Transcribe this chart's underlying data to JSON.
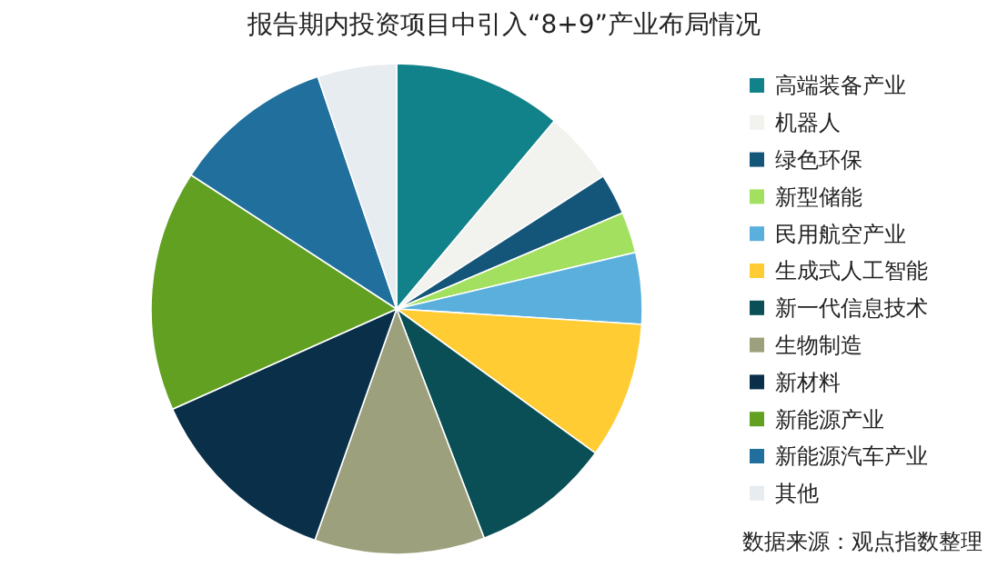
{
  "chart_data": {
    "type": "pie",
    "title": "报告期内投资项目中引入“8+9”产业布局情况",
    "categories": [
      "高端装备产业",
      "机器人",
      "绿色环保",
      "新型储能",
      "民用航空产业",
      "生成式人工智能",
      "新一代信息技术",
      "生物制造",
      "新材料",
      "新能源产业",
      "新能源汽车产业",
      "其他"
    ],
    "values": [
      11.1,
      4.8,
      2.7,
      2.7,
      4.7,
      9.0,
      9.2,
      11.2,
      12.9,
      15.9,
      10.6,
      5.2
    ],
    "colors": [
      "#12828a",
      "#f2f2ee",
      "#14557a",
      "#a4e060",
      "#5aafdc",
      "#ffcc33",
      "#0a4f55",
      "#9ca07c",
      "#0a3049",
      "#62a022",
      "#216f9c",
      "#e6ecf0"
    ],
    "legend": "right",
    "annotations": [
      "数据来源：观点指数整理"
    ]
  }
}
